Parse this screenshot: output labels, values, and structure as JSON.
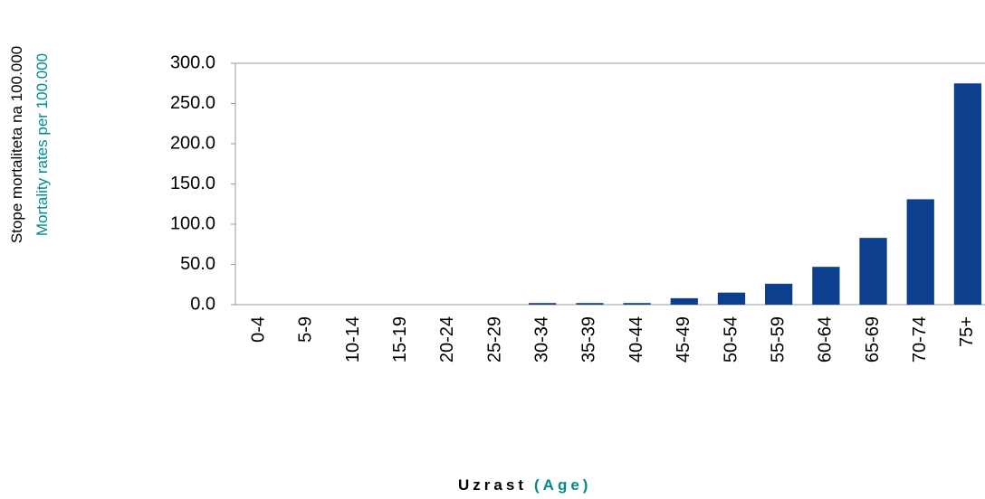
{
  "chart_data": {
    "type": "bar",
    "y_label": "Stope mortaliteta na 100.000",
    "y_label_en": "Mortality rates per 100.000",
    "x_label": "Uzrast",
    "x_label_en": "(Age)",
    "categories": [
      "0-4",
      "5-9",
      "10-14",
      "15-19",
      "20-24",
      "25-29",
      "30-34",
      "35-39",
      "40-44",
      "45-49",
      "50-54",
      "55-59",
      "60-64",
      "65-69",
      "70-74",
      "75+"
    ],
    "values": [
      0,
      0,
      0,
      0,
      0,
      0,
      2,
      2,
      2,
      8,
      15,
      26,
      47,
      83,
      131,
      275
    ],
    "color": "#0d3f8f",
    "ylim": [
      0,
      300
    ],
    "yticks": [
      {
        "value": 0,
        "label": "0.0"
      },
      {
        "value": 50,
        "label": "50.0"
      },
      {
        "value": 100,
        "label": "100.0"
      },
      {
        "value": 150,
        "label": "150.0"
      },
      {
        "value": 200,
        "label": "200.0"
      },
      {
        "value": 250,
        "label": "250.0"
      },
      {
        "value": 300,
        "label": "300.0"
      }
    ]
  }
}
